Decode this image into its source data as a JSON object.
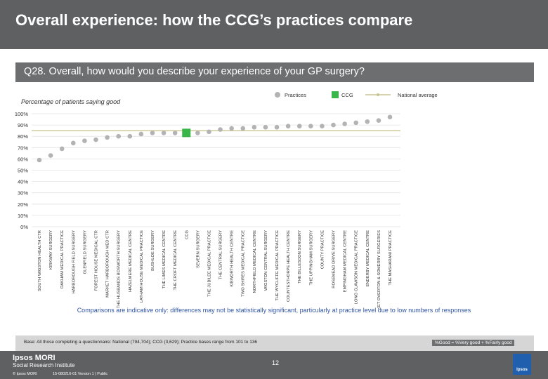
{
  "header": {
    "title": "Overall experience: how the CCG’s practices compare"
  },
  "question": "Q28. Overall, how would you describe your experience of your GP surgery?",
  "subtitle": "Percentage of patients saying good",
  "note": "Comparisons are indicative only: differences may not be statistically significant, particularly at practice level due to low numbers of responses",
  "footer": {
    "base": "Base: All those completing a questionnaire: National (794,704); CCG (3,629); Practice bases range from 101 to 136",
    "formula": "%Good = %Very good + %Fairly good",
    "logo_name": "Ipsos MORI",
    "logo_sub": "Social Research Institute",
    "copyright": "© Ipsos MORI",
    "version": "15-080216-01 Version 1 | Public",
    "page_number": "12",
    "brand": "Ipsos"
  },
  "colors": {
    "practice": "#b3b3b3",
    "ccg": "#3ab54a",
    "national": "#c9c48f",
    "accent": "#2f55a4"
  },
  "chart_data": {
    "type": "scatter",
    "ylim": [
      0,
      100
    ],
    "yticks": [
      "0%",
      "10%",
      "20%",
      "30%",
      "40%",
      "50%",
      "60%",
      "70%",
      "80%",
      "90%",
      "100%"
    ],
    "legend": {
      "practices": "Practices",
      "ccg": "CCG",
      "national": "National average"
    },
    "national_average": 85,
    "categories": [
      "SOUTH WIGSTON HEALTH CTR",
      "KIRKWAY SURGERY",
      "OAKHAM MEDICAL PRACTICE",
      "HARBOROUGH FIELD SURGERY",
      "GLENFIELD SURGERY",
      "FOREST HOUSE MEDICAL CTR",
      "MARKET HARBOROUGH MED CTR",
      "THE HUSBANDS BOSWORTH SURGERY",
      "HAZELMERE MEDICAL CENTRE",
      "LATHAM HOUSE MEDICAL PRACTICE",
      "BUSHLOE SURGERY",
      "THE LIMES MEDICAL CENTRE",
      "THE CROFT MEDICAL CENTRE",
      "CCG",
      "SEVERN SURGERY",
      "THE JUBILEE MEDICAL PRACTICE",
      "THE CENTRAL SURGERY",
      "KIBWORTH HEALTH CENTRE",
      "TWO SHIRES MEDICAL PRACTICE",
      "NORTHFIELD MEDICAL CENTRE",
      "WIGSTON CENTRAL SURGERY",
      "THE WYCLIFFE MEDICAL PRACTICE",
      "COUNTESTHORPE HEALTH CENTRE",
      "THE BILLESDON SURGERY",
      "THE UPPINGHAM SURGERY",
      "COUNTY PRACTICE",
      "ROSEMEAD DRIVE SURGERY",
      "EMPINGHAM MEDICAL CENTRE",
      "LONG CLAWSON MEDICAL PRACTICE",
      "ENDERBY MEDICAL CENTRE",
      "MARKET OVERTON & SOMERBY SURGERIES",
      "THE MASHARANI PRACTICE"
    ],
    "values": [
      59,
      63,
      69,
      74,
      76,
      77,
      79,
      80,
      80,
      82,
      83,
      83,
      83,
      83,
      83,
      84,
      86,
      87,
      87,
      88,
      88,
      88,
      89,
      89,
      89,
      89,
      90,
      91,
      92,
      93,
      94,
      97
    ],
    "is_ccg": [
      false,
      false,
      false,
      false,
      false,
      false,
      false,
      false,
      false,
      false,
      false,
      false,
      false,
      true,
      false,
      false,
      false,
      false,
      false,
      false,
      false,
      false,
      false,
      false,
      false,
      false,
      false,
      false,
      false,
      false,
      false,
      false
    ]
  }
}
